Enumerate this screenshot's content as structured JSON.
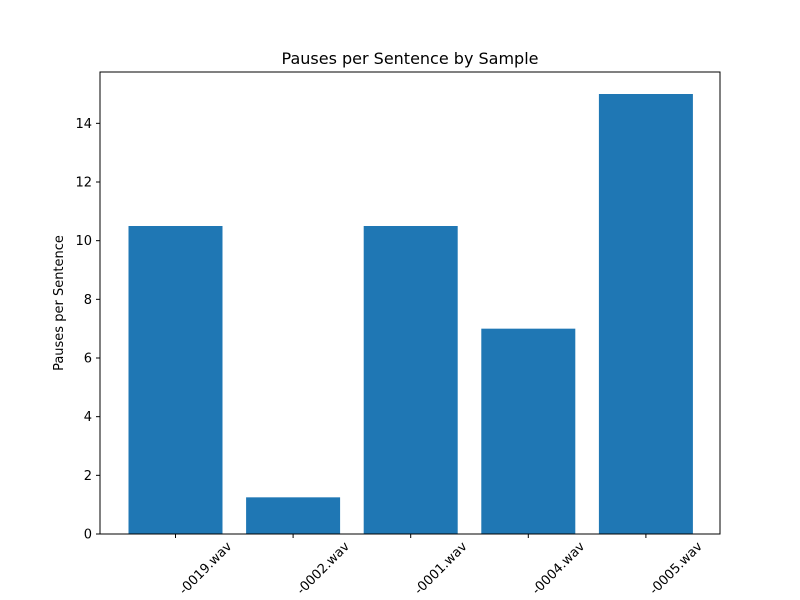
{
  "chart_data": {
    "type": "bar",
    "title": "Pauses per Sentence by Sample",
    "xlabel": "",
    "ylabel": "Pauses per Sentence",
    "categories": [
      "-0019.wav",
      "-0002.wav",
      "-0001.wav",
      "-0004.wav",
      "-0005.wav"
    ],
    "values": [
      10.5,
      1.25,
      10.5,
      7.0,
      15.0
    ],
    "ylim": [
      0,
      15.75
    ],
    "yticks": [
      0,
      2,
      4,
      6,
      8,
      10,
      12,
      14
    ],
    "bar_color": "#1f77b4",
    "grid": false,
    "legend": "none",
    "xtick_rotation_deg": 45
  }
}
